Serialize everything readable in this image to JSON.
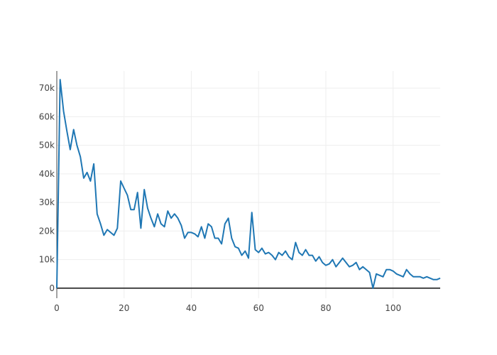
{
  "chart_data": {
    "type": "line",
    "title": "",
    "xlabel": "",
    "ylabel": "",
    "xlim": [
      0,
      114
    ],
    "ylim": [
      -3500,
      76000
    ],
    "grid": true,
    "x_ticks": [
      0,
      20,
      40,
      60,
      80,
      100
    ],
    "y_ticks": [
      0,
      10000,
      20000,
      30000,
      40000,
      50000,
      60000,
      70000
    ],
    "y_tick_labels": [
      "0",
      "10k",
      "20k",
      "30k",
      "40k",
      "50k",
      "60k",
      "70k"
    ],
    "line_color": "#1f77b4",
    "series": [
      {
        "x": [
          0,
          1,
          2,
          3,
          4,
          5,
          6,
          7,
          8,
          9,
          10,
          11,
          12,
          13,
          14,
          15,
          16,
          17,
          18,
          19,
          20,
          21,
          22,
          23,
          24,
          25,
          26,
          27,
          28,
          29,
          30,
          31,
          32,
          33,
          34,
          35,
          36,
          37,
          38,
          39,
          40,
          41,
          42,
          43,
          44,
          45,
          46,
          47,
          48,
          49,
          50,
          51,
          52,
          53,
          54,
          55,
          56,
          57,
          58,
          59,
          60,
          61,
          62,
          63,
          64,
          65,
          66,
          67,
          68,
          69,
          70,
          71,
          72,
          73,
          74,
          75,
          76,
          77,
          78,
          79,
          80,
          81,
          82,
          83,
          84,
          85,
          86,
          87,
          88,
          89,
          90,
          91,
          92,
          93,
          94,
          95,
          96,
          97,
          98,
          99,
          100,
          101,
          102,
          103,
          104,
          105,
          106,
          107,
          108,
          109,
          110,
          111,
          112,
          113,
          114
        ],
        "y": [
          0,
          73000,
          62000,
          55000,
          48500,
          55500,
          50000,
          46000,
          38500,
          40500,
          37500,
          43500,
          26000,
          22500,
          18500,
          20500,
          19500,
          18500,
          21000,
          37500,
          35000,
          32500,
          27500,
          27500,
          33500,
          21000,
          34500,
          28000,
          24500,
          21500,
          26000,
          22500,
          21500,
          27000,
          24500,
          26000,
          24500,
          22000,
          17500,
          19500,
          19500,
          19000,
          18000,
          21500,
          17500,
          22500,
          21500,
          17500,
          17500,
          15500,
          22500,
          24500,
          17500,
          14500,
          14000,
          11500,
          13000,
          10500,
          26500,
          13500,
          12500,
          14000,
          12000,
          12500,
          11500,
          10000,
          12500,
          11500,
          13000,
          11000,
          10000,
          16000,
          12500,
          11500,
          13500,
          11500,
          11500,
          9500,
          11000,
          9000,
          8000,
          8500,
          10000,
          7500,
          9000,
          10500,
          9000,
          7500,
          8000,
          9000,
          6500,
          7500,
          6500,
          5500,
          0,
          5000,
          4500,
          4000,
          6500,
          6500,
          6000,
          5000,
          4500,
          4000,
          6500,
          5000,
          4000,
          4000,
          4000,
          3500,
          4000,
          3500,
          3000,
          3000,
          3500
        ]
      }
    ]
  }
}
